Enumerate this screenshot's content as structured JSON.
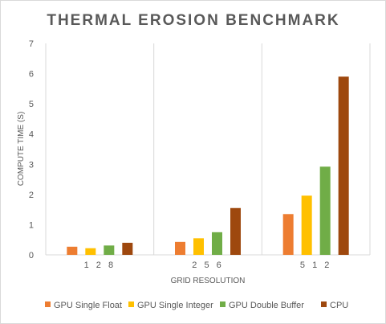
{
  "chart_data": {
    "type": "bar",
    "title": "THERMAL EROSION BENCHMARK",
    "xlabel": "GRID RESOLUTION",
    "ylabel": "COMPUTE TIME (S)",
    "categories": [
      "128",
      "256",
      "512"
    ],
    "category_labels": [
      "1 2 8",
      "2 5 6",
      "5 1 2"
    ],
    "ylim": [
      0,
      7
    ],
    "yticks": [
      0,
      1,
      2,
      3,
      4,
      5,
      6,
      7
    ],
    "grid": "vertical separators between categories",
    "legend_position": "bottom",
    "series": [
      {
        "name": "GPU Single Float",
        "color": "#ed7d31",
        "values": [
          0.27,
          0.43,
          1.35
        ]
      },
      {
        "name": "GPU Single Integer",
        "color": "#ffc000",
        "values": [
          0.22,
          0.55,
          1.96
        ]
      },
      {
        "name": "GPU Double Buffer",
        "color": "#70ad47",
        "values": [
          0.31,
          0.75,
          2.92
        ]
      },
      {
        "name": "CPU",
        "color": "#9e480e",
        "values": [
          0.4,
          1.55,
          5.9
        ]
      }
    ]
  }
}
